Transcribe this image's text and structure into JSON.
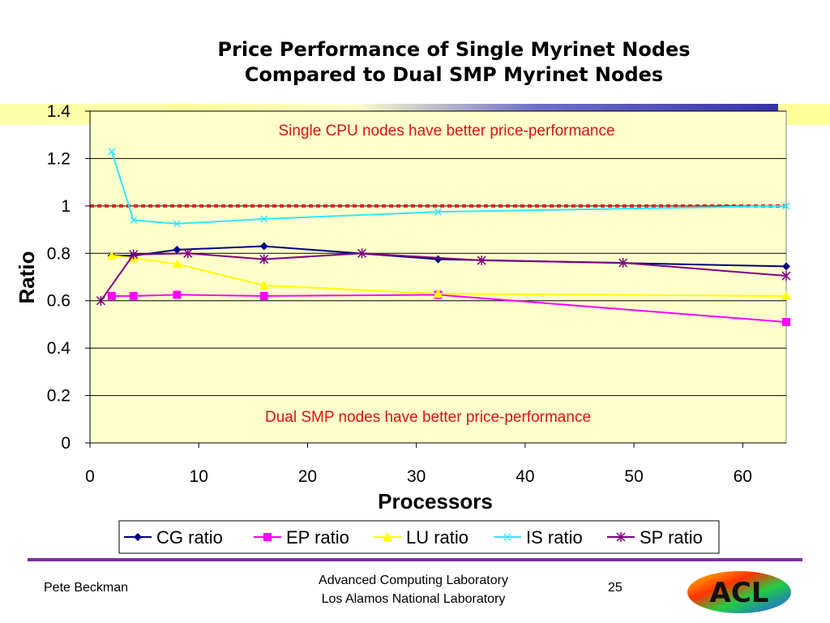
{
  "slide": {
    "title_line1": "Price Performance of Single Myrinet Nodes",
    "title_line2": "Compared to Dual SMP Myrinet Nodes",
    "footer_author": "Pete Beckman",
    "footer_org_line1": "Advanced Computing Laboratory",
    "footer_org_line2": "Los Alamos National Laboratory",
    "page_number": "25",
    "logo_text": "ACL"
  },
  "chart_data": {
    "type": "line",
    "xlabel": "Processors",
    "ylabel": "Ratio",
    "xlim": [
      0,
      64
    ],
    "ylim": [
      0,
      1.4
    ],
    "xticks": [
      "0",
      "10",
      "20",
      "30",
      "40",
      "50",
      "60"
    ],
    "yticks": [
      "0",
      "0.2",
      "0.4",
      "0.6",
      "0.8",
      "1",
      "1.2",
      "1.4"
    ],
    "grid": "horizontal",
    "legend_position": "bottom",
    "reference_line": {
      "y": 1.0,
      "style": "dashed",
      "color": "#dd2222"
    },
    "annotations": [
      {
        "text": "Single CPU nodes have better price-performance",
        "color": "#dd1111"
      },
      {
        "text": "Dual SMP nodes have better price-performance",
        "color": "#dd1111"
      }
    ],
    "series": [
      {
        "name": "CG ratio",
        "color": "#000080",
        "marker": "diamond",
        "x": [
          2,
          4,
          8,
          16,
          32,
          64
        ],
        "y": [
          0.79,
          0.79,
          0.815,
          0.83,
          0.775,
          0.745
        ]
      },
      {
        "name": "EP ratio",
        "color": "#ff00ff",
        "marker": "square",
        "x": [
          2,
          4,
          8,
          16,
          32,
          64
        ],
        "y": [
          0.62,
          0.62,
          0.625,
          0.62,
          0.625,
          0.51
        ]
      },
      {
        "name": "LU ratio",
        "color": "#ffff00",
        "marker": "triangle",
        "x": [
          2,
          4,
          8,
          16,
          32,
          64
        ],
        "y": [
          0.79,
          0.78,
          0.755,
          0.665,
          0.63,
          0.62
        ]
      },
      {
        "name": "IS ratio",
        "color": "#33e6ff",
        "marker": "x",
        "x": [
          2,
          4,
          8,
          16,
          32,
          64
        ],
        "y": [
          1.23,
          0.94,
          0.925,
          0.945,
          0.975,
          1.0
        ]
      },
      {
        "name": "SP ratio",
        "color": "#800080",
        "marker": "star",
        "x": [
          1,
          4,
          9,
          16,
          25,
          36,
          49,
          64
        ],
        "y": [
          0.6,
          0.795,
          0.8,
          0.775,
          0.8,
          0.77,
          0.76,
          0.705
        ]
      }
    ]
  }
}
